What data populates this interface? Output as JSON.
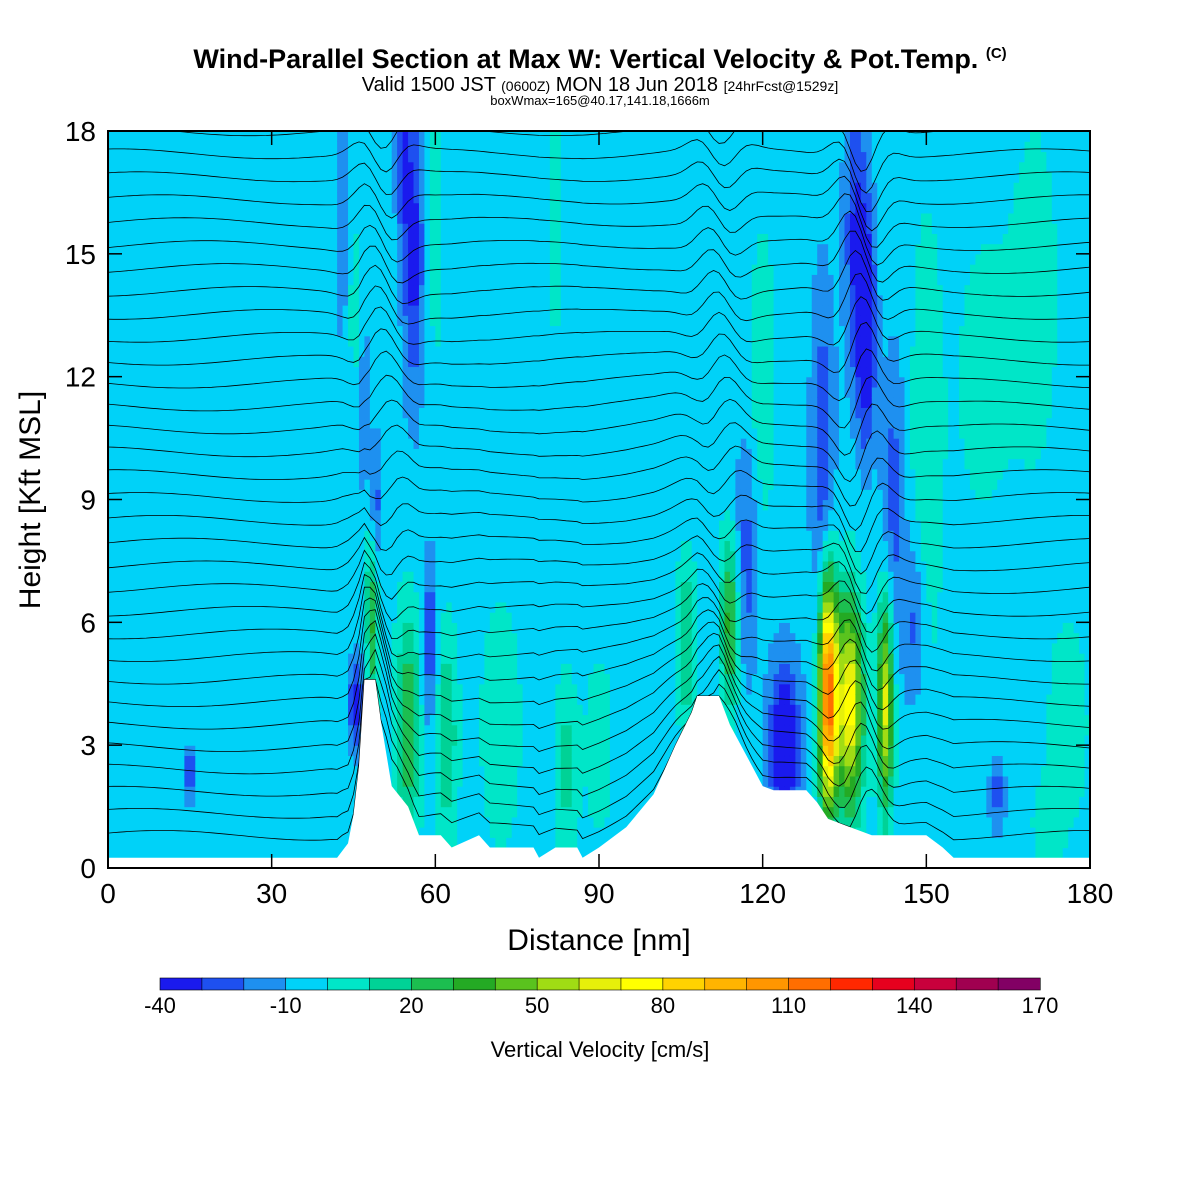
{
  "header": {
    "title": "Wind-Parallel Section at Max W: Vertical Velocity & Pot.Temp.",
    "copyright": "(C)",
    "valid_prefix": "Valid 1500 JST",
    "valid_utc": "(0600Z)",
    "valid_date": "MON 18 Jun 2018",
    "forecast": "[24hrFcst@1529z]",
    "boxwmax": "boxWmax=165@40.17,141.18,1666m"
  },
  "chart_data": {
    "type": "heatmap",
    "xlabel": "Distance [nm]",
    "ylabel": "Height [Kft MSL]",
    "xlim": [
      0,
      180
    ],
    "ylim": [
      0,
      18
    ],
    "x_ticks": [
      "0",
      "30",
      "60",
      "90",
      "120",
      "150",
      "180"
    ],
    "y_ticks": [
      "0",
      "3",
      "6",
      "9",
      "12",
      "15",
      "18"
    ],
    "colorbar": {
      "label": "Vertical Velocity [cm/s]",
      "tick_labels": [
        "-40",
        "-10",
        "20",
        "50",
        "80",
        "110",
        "140",
        "170"
      ],
      "levels": [
        -40,
        -30,
        -20,
        -10,
        0,
        10,
        20,
        30,
        40,
        50,
        60,
        70,
        80,
        90,
        100,
        110,
        120,
        130,
        140,
        150,
        160,
        170
      ],
      "colors": [
        "#1a1aee",
        "#1e50f0",
        "#1e90f0",
        "#00d2f8",
        "#00e6c8",
        "#00d296",
        "#1cbe50",
        "#24aa24",
        "#5ac31e",
        "#a0dc14",
        "#e6f00a",
        "#ffff00",
        "#ffd200",
        "#ffb400",
        "#ff9600",
        "#ff6e00",
        "#ff2800",
        "#e6001e",
        "#c8003c",
        "#a00050",
        "#820064"
      ]
    },
    "background_value": -5,
    "terrain": [
      {
        "x": 0,
        "h": 0.25
      },
      {
        "x": 42,
        "h": 0.25
      },
      {
        "x": 44,
        "h": 0.6
      },
      {
        "x": 45,
        "h": 1.3
      },
      {
        "x": 46,
        "h": 2.5
      },
      {
        "x": 47,
        "h": 4.6
      },
      {
        "x": 49,
        "h": 4.6
      },
      {
        "x": 50,
        "h": 3.6
      },
      {
        "x": 52,
        "h": 2.0
      },
      {
        "x": 55,
        "h": 1.5
      },
      {
        "x": 57,
        "h": 0.8
      },
      {
        "x": 61,
        "h": 0.8
      },
      {
        "x": 63,
        "h": 0.5
      },
      {
        "x": 68,
        "h": 0.8
      },
      {
        "x": 70,
        "h": 0.5
      },
      {
        "x": 78,
        "h": 0.5
      },
      {
        "x": 79,
        "h": 0.25
      },
      {
        "x": 82,
        "h": 0.5
      },
      {
        "x": 86,
        "h": 0.5
      },
      {
        "x": 87,
        "h": 0.25
      },
      {
        "x": 90,
        "h": 0.5
      },
      {
        "x": 95,
        "h": 1.0
      },
      {
        "x": 100,
        "h": 1.8
      },
      {
        "x": 104,
        "h": 3.0
      },
      {
        "x": 107,
        "h": 3.8
      },
      {
        "x": 108,
        "h": 4.2
      },
      {
        "x": 112,
        "h": 4.2
      },
      {
        "x": 114,
        "h": 3.5
      },
      {
        "x": 118,
        "h": 2.5
      },
      {
        "x": 120,
        "h": 2.0
      },
      {
        "x": 122,
        "h": 1.9
      },
      {
        "x": 128,
        "h": 1.9
      },
      {
        "x": 130,
        "h": 1.6
      },
      {
        "x": 132,
        "h": 1.2
      },
      {
        "x": 136,
        "h": 1.0
      },
      {
        "x": 140,
        "h": 0.8
      },
      {
        "x": 150,
        "h": 0.8
      },
      {
        "x": 153,
        "h": 0.5
      },
      {
        "x": 155,
        "h": 0.25
      },
      {
        "x": 180,
        "h": 0.25
      }
    ],
    "features": [
      {
        "x": 48.5,
        "y": 6.3,
        "sx": 0.8,
        "sy": 1.6,
        "v": 40
      },
      {
        "x": 49,
        "y": 8.5,
        "sx": 0.6,
        "sy": 1.4,
        "v": -30
      },
      {
        "x": 47,
        "y": 11.0,
        "sx": 0.5,
        "sy": 1.5,
        "v": -20
      },
      {
        "x": 45.5,
        "y": 4.0,
        "sx": 1.0,
        "sy": 0.8,
        "v": -30
      },
      {
        "x": 55,
        "y": 3.5,
        "sx": 1.6,
        "sy": 2.0,
        "v": 35
      },
      {
        "x": 62,
        "y": 3.3,
        "sx": 1.5,
        "sy": 1.8,
        "v": 25
      },
      {
        "x": 59,
        "y": 5.5,
        "sx": 1.0,
        "sy": 1.5,
        "v": -25
      },
      {
        "x": 56,
        "y": 15.0,
        "sx": 1.4,
        "sy": 2.5,
        "v": -30
      },
      {
        "x": 54,
        "y": 17.5,
        "sx": 1.0,
        "sy": 1.5,
        "v": -20
      },
      {
        "x": 60,
        "y": 15.5,
        "sx": 1.2,
        "sy": 2.5,
        "v": 10
      },
      {
        "x": 43,
        "y": 15.5,
        "sx": 1.0,
        "sy": 2.0,
        "v": -15
      },
      {
        "x": 45,
        "y": 14.0,
        "sx": 1.0,
        "sy": 1.5,
        "v": 10
      },
      {
        "x": 72,
        "y": 3.5,
        "sx": 2.5,
        "sy": 2.0,
        "v": 15
      },
      {
        "x": 84,
        "y": 2.5,
        "sx": 1.5,
        "sy": 1.5,
        "v": 20
      },
      {
        "x": 90,
        "y": 3.0,
        "sx": 2.0,
        "sy": 1.8,
        "v": 10
      },
      {
        "x": 82,
        "y": 16.0,
        "sx": 1.5,
        "sy": 3.0,
        "v": 8
      },
      {
        "x": 100,
        "y": 14.5,
        "sx": 2.0,
        "sy": 3.5,
        "v": 5
      },
      {
        "x": 106,
        "y": 5.5,
        "sx": 1.2,
        "sy": 1.5,
        "v": 25
      },
      {
        "x": 114,
        "y": 6.0,
        "sx": 1.2,
        "sy": 1.5,
        "v": 40
      },
      {
        "x": 117,
        "y": 7.5,
        "sx": 1.5,
        "sy": 2.0,
        "v": -20
      },
      {
        "x": 120,
        "y": 12.0,
        "sx": 1.5,
        "sy": 2.5,
        "v": 15
      },
      {
        "x": 124,
        "y": 3.0,
        "sx": 2.0,
        "sy": 1.5,
        "v": -40
      },
      {
        "x": 132,
        "y": 4.3,
        "sx": 1.2,
        "sy": 2.0,
        "v": 125
      },
      {
        "x": 136,
        "y": 4.0,
        "sx": 1.7,
        "sy": 1.8,
        "v": 80
      },
      {
        "x": 142.5,
        "y": 4.0,
        "sx": 1.0,
        "sy": 1.8,
        "v": 70
      },
      {
        "x": 139,
        "y": 13.2,
        "sx": 1.2,
        "sy": 2.0,
        "v": -40
      },
      {
        "x": 137,
        "y": 15.5,
        "sx": 1.5,
        "sy": 2.5,
        "v": -25
      },
      {
        "x": 131,
        "y": 10.0,
        "sx": 1.5,
        "sy": 3.0,
        "v": -25
      },
      {
        "x": 144,
        "y": 9.0,
        "sx": 1.5,
        "sy": 2.5,
        "v": -20
      },
      {
        "x": 148,
        "y": 6.0,
        "sx": 1.5,
        "sy": 1.5,
        "v": -20
      },
      {
        "x": 150,
        "y": 10.0,
        "sx": 2.0,
        "sy": 4.0,
        "v": 15
      },
      {
        "x": 160,
        "y": 12.0,
        "sx": 4.0,
        "sy": 3.0,
        "v": 8
      },
      {
        "x": 170,
        "y": 14.0,
        "sx": 4.0,
        "sy": 4.0,
        "v": 8
      },
      {
        "x": 38,
        "y": 9.0,
        "sx": 4.0,
        "sy": 3.0,
        "v": 5
      },
      {
        "x": 15,
        "y": 14.0,
        "sx": 3.0,
        "sy": 3.0,
        "v": 5
      },
      {
        "x": 15,
        "y": 2.3,
        "sx": 0.7,
        "sy": 0.5,
        "v": -25
      },
      {
        "x": 176,
        "y": 3.5,
        "sx": 3.0,
        "sy": 2.0,
        "v": 10
      },
      {
        "x": 163,
        "y": 1.8,
        "sx": 1.0,
        "sy": 0.6,
        "v": -20
      },
      {
        "x": 172,
        "y": 1.0,
        "sx": 2.0,
        "sy": 0.8,
        "v": 10
      }
    ],
    "isentropes": {
      "count": 32,
      "wave_sites": [
        {
          "x": 50,
          "amp": 0.6
        },
        {
          "x": 112,
          "amp": 0.5
        },
        {
          "x": 138,
          "amp": 0.9
        }
      ]
    }
  }
}
